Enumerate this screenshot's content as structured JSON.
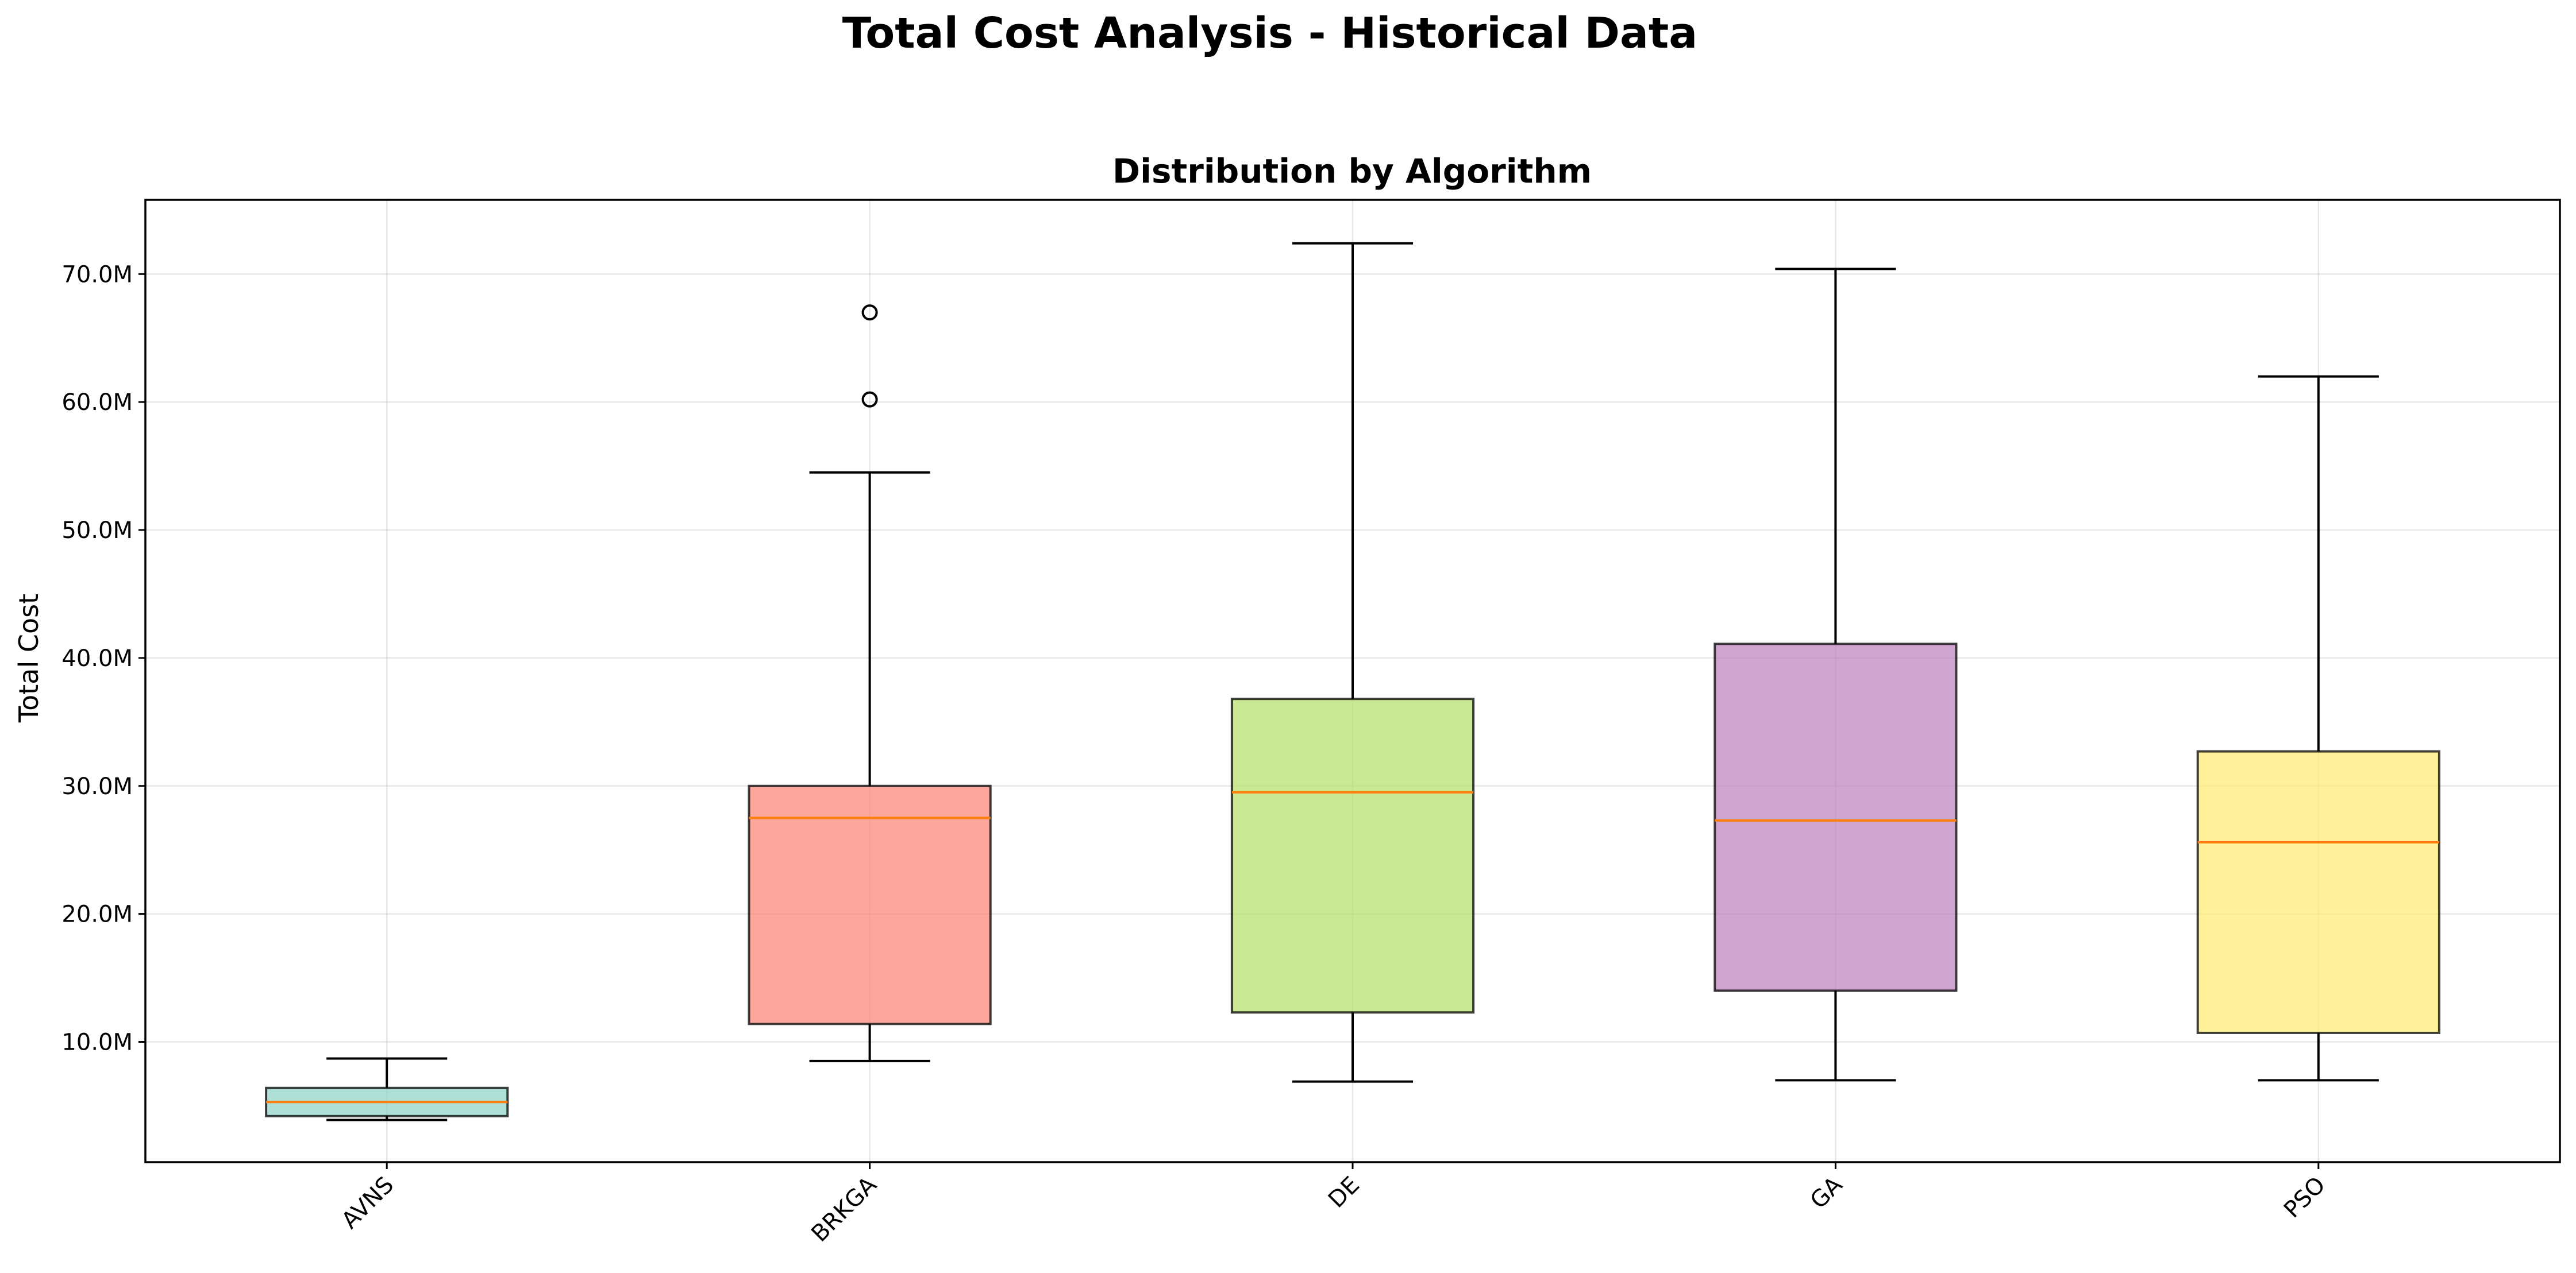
{
  "chart_data": {
    "type": "box",
    "suptitle": "Total Cost Analysis - Historical Data",
    "title": "Distribution by Algorithm",
    "xlabel": "",
    "ylabel": "Total Cost",
    "ylim": [
      0.6,
      75.8
    ],
    "yticks": [
      10,
      20,
      30,
      40,
      50,
      60,
      70
    ],
    "ytick_labels": [
      "10.0M",
      "20.0M",
      "30.0M",
      "40.0M",
      "50.0M",
      "60.0M",
      "70.0M"
    ],
    "units": "millions",
    "grid": true,
    "median_color": "#ff7f0e",
    "categories": [
      "AVNS",
      "BRKGA",
      "DE",
      "GA",
      "PSO"
    ],
    "boxes": [
      {
        "name": "AVNS",
        "whisker_low": 3.9,
        "q1": 4.2,
        "median": 5.3,
        "q3": 6.4,
        "whisker_high": 8.7,
        "outliers": [],
        "color": "#8dd3c7"
      },
      {
        "name": "BRKGA",
        "whisker_low": 8.5,
        "q1": 11.4,
        "median": 27.5,
        "q3": 30.0,
        "whisker_high": 54.5,
        "outliers": [
          60.2,
          67.0
        ],
        "color": "#fb8072"
      },
      {
        "name": "DE",
        "whisker_low": 6.9,
        "q1": 12.3,
        "median": 29.5,
        "q3": 36.8,
        "whisker_high": 72.4,
        "outliers": [],
        "color": "#b3de69"
      },
      {
        "name": "GA",
        "whisker_low": 7.0,
        "q1": 14.0,
        "median": 27.3,
        "q3": 41.1,
        "whisker_high": 70.4,
        "outliers": [],
        "color": "#bc80bd"
      },
      {
        "name": "PSO",
        "whisker_low": 7.0,
        "q1": 10.7,
        "median": 25.6,
        "q3": 32.7,
        "whisker_high": 62.0,
        "outliers": [],
        "color": "#ffed6f"
      }
    ]
  }
}
